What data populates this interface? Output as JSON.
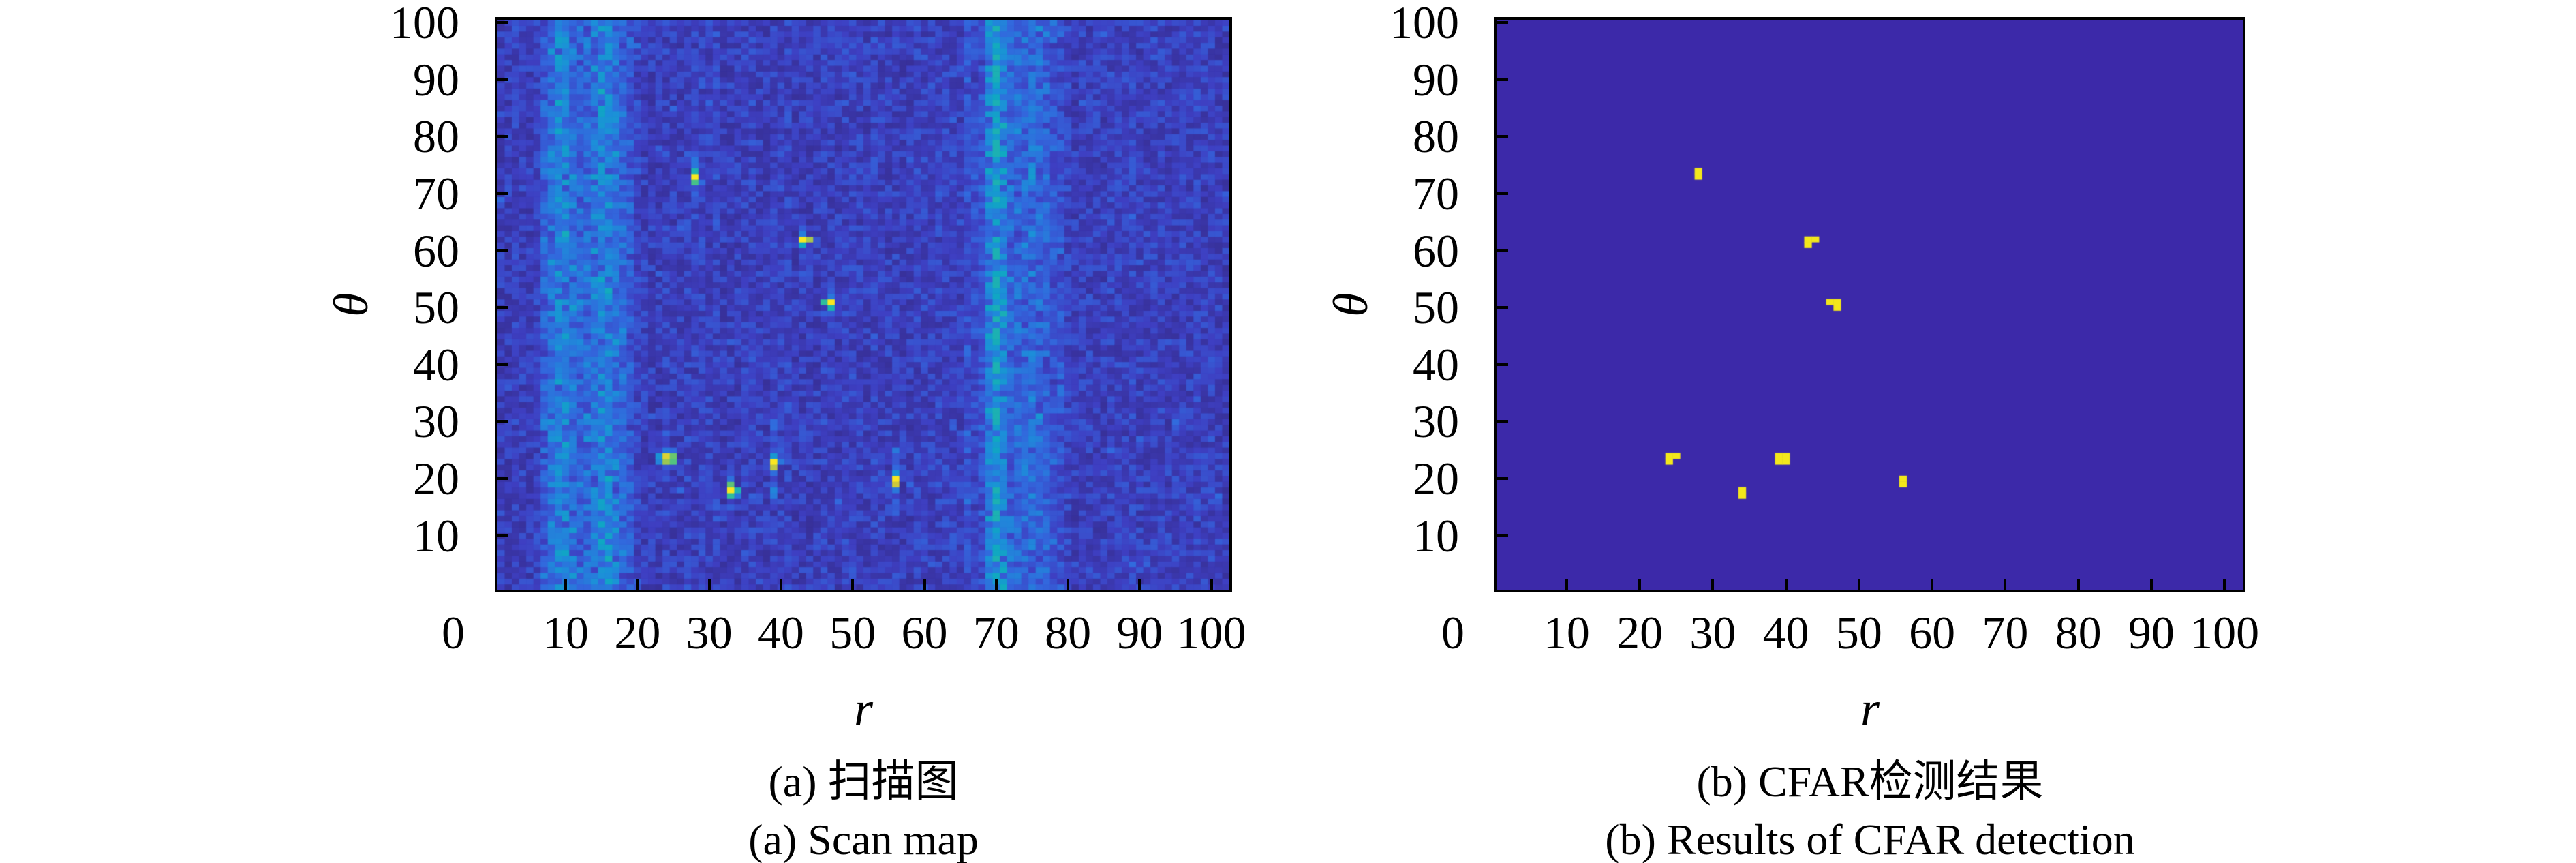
{
  "figure": {
    "background": "#ffffff",
    "axis_color": "#000000",
    "colormap": [
      [
        0.0,
        "#352A87"
      ],
      [
        0.12,
        "#3E3FC2"
      ],
      [
        0.25,
        "#3268DD"
      ],
      [
        0.38,
        "#1C8FD9"
      ],
      [
        0.5,
        "#0FA8C2"
      ],
      [
        0.62,
        "#2FBD9C"
      ],
      [
        0.75,
        "#7DC75F"
      ],
      [
        0.87,
        "#C8C73E"
      ],
      [
        1.0,
        "#F9E721"
      ]
    ],
    "panels": [
      {
        "key": "a",
        "kind": "scan",
        "caption_cn": "(a) 扫描图",
        "caption_en": "(a) Scan map",
        "xlabel": "r",
        "ylabel": "θ",
        "x_ticks": [
          "0",
          "10",
          "20",
          "30",
          "40",
          "50",
          "60",
          "70",
          "80",
          "90",
          "100"
        ],
        "y_ticks": [
          "10",
          "20",
          "30",
          "40",
          "50",
          "60",
          "70",
          "80",
          "90",
          "100"
        ],
        "grid": {
          "cols": 102,
          "rows": 100
        },
        "noise": {
          "floor": 0.035,
          "span": 0.16,
          "seed": 20240311
        },
        "bands": [
          {
            "from": 7,
            "to": 19,
            "base": 0.05,
            "peaks": [
              {
                "r": 9.5,
                "amp": 0.17,
                "sigma": 1.6
              },
              {
                "r": 15.5,
                "amp": 0.2,
                "sigma": 1.8
              }
            ]
          },
          {
            "from": 66,
            "to": 79,
            "base": 0.04,
            "peaks": [
              {
                "r": 70.0,
                "amp": 0.28,
                "sigma": 1.0
              },
              {
                "r": 74.5,
                "amp": 0.11,
                "sigma": 2.4
              }
            ]
          }
        ],
        "targets": [
          {
            "name": "target-1",
            "cells": [
              [
                28,
                73,
                1.0
              ],
              [
                28,
                74,
                0.56
              ],
              [
                28,
                72,
                0.66
              ],
              [
                28,
                75,
                0.3
              ]
            ],
            "smear": {
              "col": 28,
              "from": 68,
              "to": 78,
              "amp": 0.1
            }
          },
          {
            "name": "target-2",
            "cells": [
              [
                43,
                62,
                1.0
              ],
              [
                44,
                62,
                0.82
              ],
              [
                43,
                61,
                0.5
              ],
              [
                43,
                63,
                0.32
              ]
            ],
            "smear": {
              "col": 43,
              "from": 56,
              "to": 66,
              "amp": 0.08
            }
          },
          {
            "name": "target-3",
            "cells": [
              [
                47,
                51,
                1.0
              ],
              [
                46,
                51,
                0.62
              ],
              [
                47,
                50,
                0.55
              ],
              [
                47,
                52,
                0.3
              ]
            ],
            "smear": {
              "col": 47,
              "from": 46,
              "to": 54,
              "amp": 0.07
            }
          },
          {
            "name": "target-4",
            "cells": [
              [
                24,
                24,
                0.92
              ],
              [
                25,
                24,
                0.72
              ],
              [
                24,
                23,
                0.8
              ],
              [
                25,
                23,
                0.68
              ],
              [
                23,
                24,
                0.4
              ],
              [
                23,
                23,
                0.34
              ],
              [
                24,
                25,
                0.3
              ],
              [
                25,
                25,
                0.26
              ]
            ],
            "smear": {
              "col": 24,
              "from": 20,
              "to": 28,
              "amp": 0.06
            }
          },
          {
            "name": "target-5",
            "cells": [
              [
                39,
                23,
                1.0
              ],
              [
                39,
                22,
                0.85
              ],
              [
                39,
                24,
                0.42
              ],
              [
                40,
                23,
                0.3
              ]
            ],
            "smear": {
              "col": 39,
              "from": 16,
              "to": 30,
              "amp": 0.12
            }
          },
          {
            "name": "target-6",
            "cells": [
              [
                33,
                18,
                1.0
              ],
              [
                33,
                19,
                0.7
              ],
              [
                34,
                18,
                0.56
              ],
              [
                33,
                17,
                0.62
              ],
              [
                34,
                17,
                0.3
              ]
            ],
            "smear": {
              "col": 33,
              "from": 14,
              "to": 22,
              "amp": 0.06
            }
          },
          {
            "name": "target-7",
            "cells": [
              [
                56,
                20,
                1.0
              ],
              [
                56,
                19,
                0.88
              ],
              [
                56,
                21,
                0.4
              ],
              [
                56,
                18,
                0.3
              ]
            ],
            "smear": {
              "col": 56,
              "from": 14,
              "to": 25,
              "amp": 0.1
            }
          }
        ]
      },
      {
        "key": "b",
        "kind": "cfar",
        "caption_cn": "(b) CFAR检测结果",
        "caption_en": "(b) Results of CFAR detection",
        "xlabel": "r",
        "ylabel": "θ",
        "x_ticks": [
          "0",
          "10",
          "20",
          "30",
          "40",
          "50",
          "60",
          "70",
          "80",
          "90",
          "100"
        ],
        "y_ticks": [
          "10",
          "20",
          "30",
          "40",
          "50",
          "60",
          "70",
          "80",
          "90",
          "100"
        ],
        "grid": {
          "cols": 102,
          "rows": 100
        },
        "background": "#3C29A9",
        "detection_color": "#F3E71C",
        "detections": [
          {
            "cells": [
              [
                28,
                74
              ],
              [
                28,
                73
              ]
            ]
          },
          {
            "cells": [
              [
                43,
                62
              ],
              [
                44,
                62
              ],
              [
                43,
                61
              ]
            ]
          },
          {
            "cells": [
              [
                46,
                51
              ],
              [
                47,
                51
              ],
              [
                47,
                50
              ]
            ]
          },
          {
            "cells": [
              [
                24,
                24
              ],
              [
                25,
                24
              ],
              [
                24,
                23
              ]
            ]
          },
          {
            "cells": [
              [
                39,
                24
              ],
              [
                40,
                24
              ],
              [
                39,
                23
              ],
              [
                40,
                23
              ]
            ]
          },
          {
            "cells": [
              [
                34,
                18
              ],
              [
                34,
                17
              ]
            ]
          },
          {
            "cells": [
              [
                56,
                20
              ],
              [
                56,
                19
              ]
            ]
          }
        ]
      }
    ]
  },
  "chart_data": [
    {
      "type": "heatmap",
      "title": "(a) Scan map / 扫描图",
      "xlabel": "r",
      "ylabel": "θ",
      "x_range": [
        0,
        100
      ],
      "y_range": [
        0,
        100
      ],
      "x_ticks": [
        0,
        10,
        20,
        30,
        40,
        50,
        60,
        70,
        80,
        90,
        100
      ],
      "y_ticks": [
        10,
        20,
        30,
        40,
        50,
        60,
        70,
        80,
        90,
        100
      ],
      "grid": false,
      "legend": "none",
      "colormap": "parula-like (dark blue → blue → cyan → green → yellow)",
      "background": "random low-intensity blue noise",
      "clutter_bands_r": [
        [
          7,
          19
        ],
        [
          66,
          79
        ]
      ],
      "bright_targets_r_theta": [
        [
          28,
          73
        ],
        [
          43.5,
          61.5
        ],
        [
          46.5,
          50.5
        ],
        [
          24.5,
          23.5
        ],
        [
          39,
          23
        ],
        [
          33.5,
          17.5
        ],
        [
          56,
          19.5
        ]
      ]
    },
    {
      "type": "heatmap",
      "title": "(b) Results of CFAR detection / CFAR检测结果",
      "xlabel": "r",
      "ylabel": "θ",
      "x_range": [
        0,
        100
      ],
      "y_range": [
        0,
        100
      ],
      "x_ticks": [
        0,
        10,
        20,
        30,
        40,
        50,
        60,
        70,
        80,
        90,
        100
      ],
      "y_ticks": [
        10,
        20,
        30,
        40,
        50,
        60,
        70,
        80,
        90,
        100
      ],
      "grid": false,
      "legend": "none",
      "background_value": 0,
      "detection_value": 1,
      "detections_r_theta": [
        [
          28,
          73.5
        ],
        [
          43.5,
          61.5
        ],
        [
          46.5,
          50.5
        ],
        [
          24.5,
          23.5
        ],
        [
          39.5,
          23.5
        ],
        [
          34,
          17.5
        ],
        [
          56,
          19.5
        ]
      ]
    }
  ]
}
